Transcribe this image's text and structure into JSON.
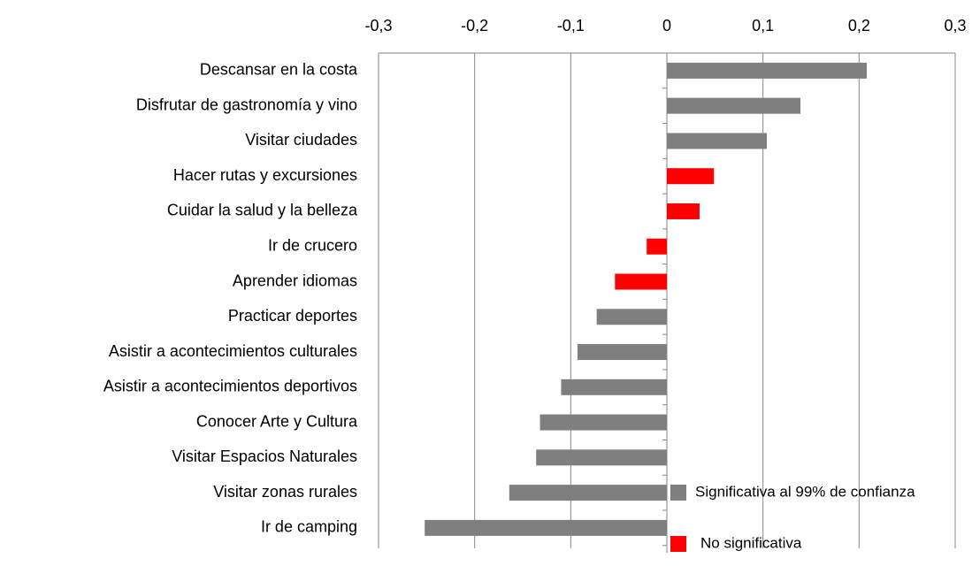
{
  "chart_data": {
    "type": "bar",
    "orientation": "horizontal",
    "categories": [
      "Descansar en la costa",
      "Disfrutar de gastronomía y vino",
      "Visitar ciudades",
      "Hacer rutas y excursiones",
      "Cuidar la salud y la belleza",
      "Ir de crucero",
      "Aprender idiomas",
      "Practicar deportes",
      "Asistir a acontecimientos culturales",
      "Asistir a acontecimientos deportivos",
      "Conocer Arte y Cultura",
      "Visitar Espacios Naturales",
      "Visitar zonas rurales",
      "Ir de camping"
    ],
    "series": [
      {
        "name": "Significativa al 99% de confianza",
        "color": "#7f7f7f",
        "values": [
          0.208,
          0.139,
          0.104,
          null,
          null,
          null,
          null,
          -0.073,
          -0.093,
          -0.11,
          -0.132,
          -0.136,
          -0.164,
          -0.252
        ]
      },
      {
        "name": "No significativa",
        "color": "#ff0000",
        "values": [
          null,
          null,
          null,
          0.049,
          0.034,
          -0.021,
          -0.054,
          null,
          null,
          null,
          null,
          null,
          null,
          null
        ]
      }
    ],
    "xlim": [
      -0.3,
      0.3
    ],
    "xticks": [
      {
        "value": -0.3,
        "label": "-0,3"
      },
      {
        "value": -0.2,
        "label": "-0,2"
      },
      {
        "value": -0.1,
        "label": "-0,1"
      },
      0,
      {
        "value": 0.1,
        "label": "0,1"
      },
      {
        "value": 0.2,
        "label": "0,2"
      },
      {
        "value": 0.3,
        "label": "0,3"
      }
    ],
    "grid": true,
    "legend": "bottom-right"
  }
}
